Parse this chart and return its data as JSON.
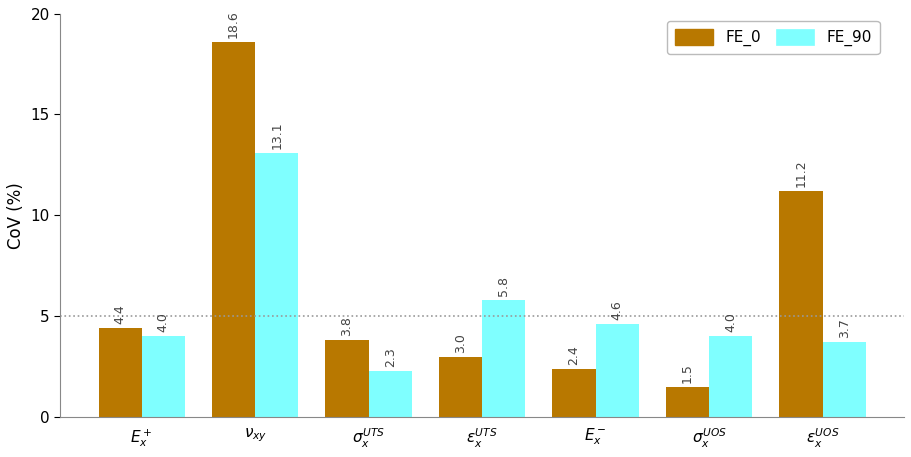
{
  "categories": [
    "$E_x^+$",
    "$\\nu_{xy}$",
    "$\\sigma_x^{UTS}$",
    "$\\epsilon_x^{UTS}$",
    "$E_x^-$",
    "$\\sigma_x^{UOS}$",
    "$\\epsilon_x^{UOS}$"
  ],
  "fe0_values": [
    4.4,
    18.6,
    3.8,
    3.0,
    2.4,
    1.5,
    11.2
  ],
  "fe90_values": [
    4.0,
    13.1,
    2.3,
    5.8,
    4.6,
    4.0,
    3.7
  ],
  "fe0_color": "#B87800",
  "fe90_color": "#7FFFFF",
  "ylabel": "CoV (%)",
  "ylim": [
    0,
    20
  ],
  "yticks": [
    0,
    5,
    10,
    15,
    20
  ],
  "hline_y": 5.0,
  "hline_color": "#999999",
  "legend_labels": [
    "FE_0",
    "FE_90"
  ],
  "bar_width": 0.38,
  "figsize": [
    9.11,
    4.57
  ],
  "dpi": 100,
  "bg_color": "#F5F5F0"
}
